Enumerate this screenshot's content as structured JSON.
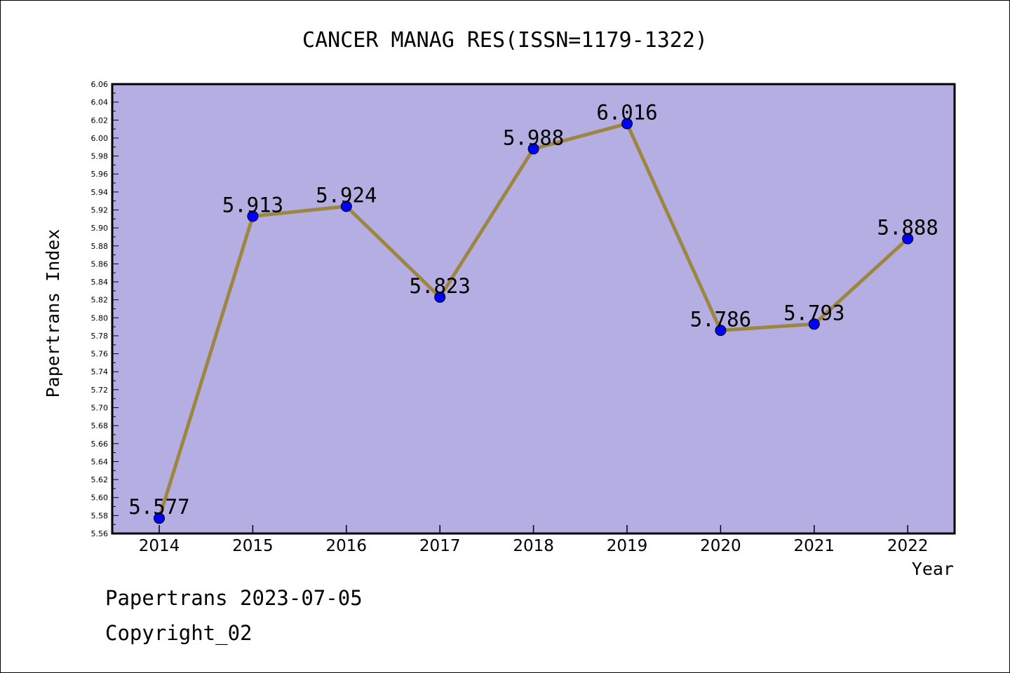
{
  "chart_data": {
    "type": "line",
    "title": "CANCER MANAG RES(ISSN=1179-1322)",
    "xlabel": "Year",
    "ylabel": "Papertrans Index",
    "categories": [
      "2014",
      "2015",
      "2016",
      "2017",
      "2018",
      "2019",
      "2020",
      "2021",
      "2022"
    ],
    "series": [
      {
        "values": [
          5.577,
          5.913,
          5.924,
          5.823,
          5.988,
          6.016,
          5.786,
          5.793,
          5.888
        ]
      }
    ],
    "data_labels": [
      "5.577",
      "5.913",
      "5.924",
      "5.823",
      "5.988",
      "6.016",
      "5.786",
      "5.793",
      "5.888"
    ],
    "ylim": [
      5.56,
      6.06
    ],
    "y_ticks": [
      "5.56",
      "5.58",
      "5.60",
      "5.62",
      "5.64",
      "5.66",
      "5.68",
      "5.70",
      "5.72",
      "5.74",
      "5.76",
      "5.78",
      "5.80",
      "5.82",
      "5.84",
      "5.86",
      "5.88",
      "5.90",
      "5.92",
      "5.94",
      "5.96",
      "5.98",
      "6.00",
      "6.02",
      "6.04",
      "6.06"
    ],
    "grid": false,
    "colors": {
      "plot_background": "#b4aee2",
      "line": "#9c8640",
      "marker": "#0000ff"
    }
  },
  "footer": {
    "source": "Papertrans 2023-07-05",
    "copyright": "Copyright_02"
  }
}
